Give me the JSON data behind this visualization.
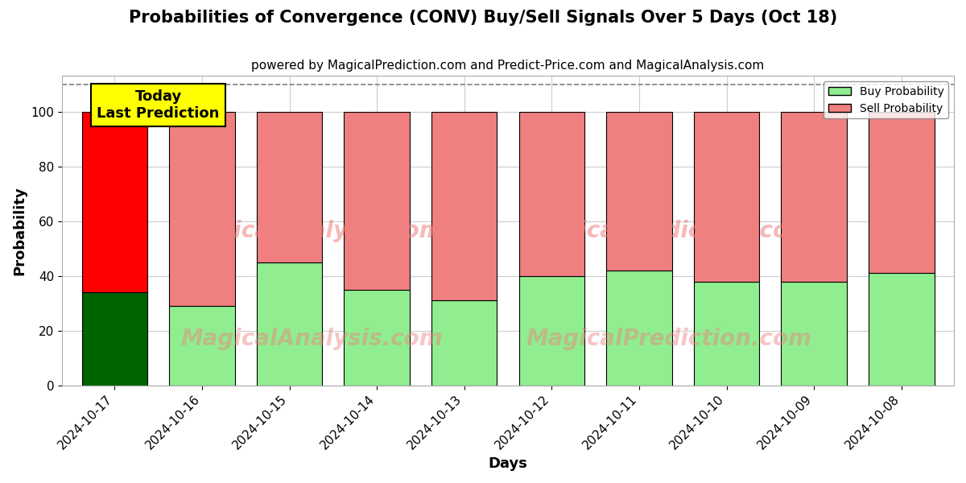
{
  "title": "Probabilities of Convergence (CONV) Buy/Sell Signals Over 5 Days (Oct 18)",
  "subtitle": "powered by MagicalPrediction.com and Predict-Price.com and MagicalAnalysis.com",
  "xlabel": "Days",
  "ylabel": "Probability",
  "legend_labels": [
    "Buy Probability",
    "Sell Probability"
  ],
  "today_label": "Today\nLast Prediction",
  "dates": [
    "2024-10-17",
    "2024-10-16",
    "2024-10-15",
    "2024-10-14",
    "2024-10-13",
    "2024-10-12",
    "2024-10-11",
    "2024-10-10",
    "2024-10-09",
    "2024-10-08"
  ],
  "buy_values": [
    34,
    29,
    45,
    35,
    31,
    40,
    42,
    38,
    38,
    41
  ],
  "sell_values": [
    66,
    71,
    55,
    65,
    69,
    60,
    58,
    62,
    62,
    59
  ],
  "today_buy_color": "#006400",
  "today_sell_color": "#ff0000",
  "buy_color": "#90EE90",
  "sell_color": "#F08080",
  "bar_edge_color": "black",
  "bar_edge_width": 0.8,
  "bar_width": 0.75,
  "today_box_color": "yellow",
  "today_box_edge": "black",
  "ylim": [
    0,
    113
  ],
  "yticks": [
    0,
    20,
    40,
    60,
    80,
    100
  ],
  "dashed_line_y": 110,
  "background_color": "white",
  "grid_color": "#cccccc",
  "title_fontsize": 15,
  "subtitle_fontsize": 11,
  "label_fontsize": 13,
  "tick_fontsize": 11,
  "watermark1": "MagicalAnalysis.com",
  "watermark2": "MagicalPrediction.com"
}
